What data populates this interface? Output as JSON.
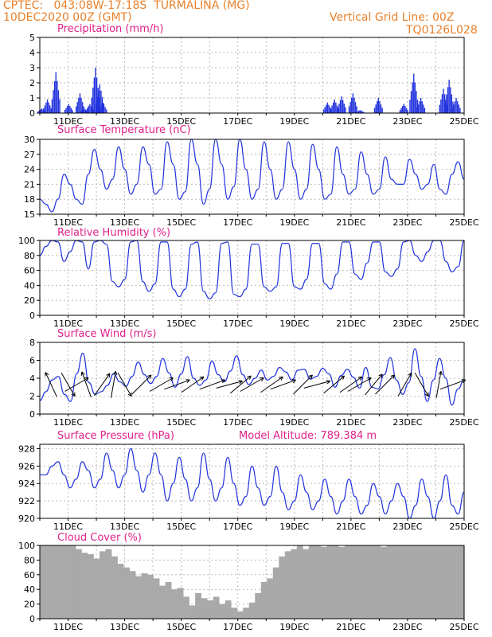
{
  "header": {
    "line1": "CPTEC:   043:08W-17:18S  TURMALINA (MG)",
    "line2": "10DEC2020 00Z (GMT)",
    "right1": "Vertical Grid Line: 00Z",
    "right2": "TQ0126L028"
  },
  "colors": {
    "line": "#2233dd",
    "title": "#e0208a",
    "header": "#e8802a",
    "cloud": "#a9a9a9",
    "arrow": "#000000"
  },
  "x_ticks": [
    "11DEC",
    "13DEC",
    "15DEC",
    "17DEC",
    "19DEC",
    "21DEC",
    "23DEC",
    "25DEC"
  ],
  "chart_data": [
    {
      "type": "bar",
      "title": "Precipitation (mm/h)",
      "ylim": [
        0,
        5
      ],
      "yticks": [
        "0",
        "1",
        "2",
        "3",
        "4",
        "5"
      ],
      "bursts": [
        [
          0.05,
          0.3
        ],
        [
          0.25,
          0.9
        ],
        [
          0.55,
          2.7
        ],
        [
          1.0,
          0.6
        ],
        [
          1.4,
          1.3
        ],
        [
          1.55,
          0.3
        ],
        [
          1.75,
          0.6
        ],
        [
          1.95,
          3.0
        ],
        [
          2.1,
          1.9
        ],
        [
          2.2,
          0.7
        ],
        [
          10.15,
          0.7
        ],
        [
          10.4,
          0.9
        ],
        [
          10.65,
          1.1
        ],
        [
          11.05,
          1.3
        ],
        [
          11.3,
          0.2
        ],
        [
          11.95,
          1.0
        ],
        [
          12.85,
          0.6
        ],
        [
          13.2,
          2.6
        ],
        [
          13.45,
          1.0
        ],
        [
          14.25,
          1.6
        ],
        [
          14.45,
          2.2
        ],
        [
          14.7,
          1.0
        ]
      ],
      "grid": true
    },
    {
      "type": "line",
      "title": "Surface Temperature (nC)",
      "ylim": [
        15,
        30
      ],
      "yticks": [
        "15",
        "18",
        "21",
        "24",
        "27",
        "30"
      ],
      "values": [
        18,
        17,
        15.5,
        18,
        23,
        21,
        18,
        17,
        23,
        28,
        24,
        20,
        22,
        28.5,
        24,
        19,
        21,
        28.5,
        25,
        19,
        20,
        29.5,
        25,
        18,
        19.5,
        30,
        25,
        17,
        20,
        31,
        25,
        18,
        20.5,
        30,
        24,
        18,
        20,
        29.5,
        24,
        18,
        20,
        29.5,
        24,
        18,
        20,
        29,
        24,
        18,
        19,
        28.5,
        23,
        19,
        20,
        27.5,
        23,
        19,
        20,
        26.5,
        22,
        21,
        21,
        26,
        23,
        20,
        21,
        25,
        20,
        19,
        23,
        25.5,
        22
      ],
      "grid": true
    },
    {
      "type": "line",
      "title": "Relative Humidity (%)",
      "ylim": [
        0,
        100
      ],
      "yticks": [
        "0",
        "20",
        "40",
        "60",
        "80",
        "100"
      ],
      "values": [
        80,
        92,
        100,
        98,
        72,
        85,
        100,
        98,
        62,
        98,
        100,
        95,
        45,
        38,
        48,
        98,
        100,
        45,
        32,
        42,
        98,
        98,
        35,
        25,
        35,
        95,
        98,
        32,
        22,
        30,
        96,
        98,
        28,
        25,
        35,
        95,
        95,
        38,
        32,
        38,
        96,
        96,
        38,
        35,
        48,
        96,
        96,
        42,
        35,
        55,
        98,
        98,
        55,
        48,
        70,
        98,
        98,
        58,
        52,
        62,
        98,
        100,
        80,
        72,
        85,
        100,
        100,
        72,
        58,
        65,
        100
      ],
      "grid": true
    },
    {
      "type": "line",
      "title": "Surface Wind (m/s)",
      "ylim": [
        0,
        8
      ],
      "yticks": [
        "0",
        "2",
        "4",
        "6",
        "8"
      ],
      "values": [
        1.5,
        2.5,
        3.8,
        4.2,
        2.2,
        1.4,
        4.5,
        6.8,
        3.5,
        2.2,
        2.5,
        3.2,
        4.5,
        3.6,
        3.1,
        4.2,
        5.8,
        4.4,
        3.4,
        4.2,
        6.2,
        4.6,
        3.0,
        4.5,
        6.4,
        4.0,
        3.2,
        3.8,
        5.9,
        4.4,
        3.6,
        4.8,
        6.5,
        4.4,
        3.3,
        4.0,
        4.9,
        3.8,
        4.2,
        5.2,
        4.7,
        3.8,
        4.9,
        5.0,
        3.9,
        4.2,
        5.1,
        4.5,
        3.0,
        4.3,
        5.0,
        4.1,
        2.9,
        5.2,
        3.0,
        2.8,
        4.4,
        6.3,
        3.8,
        2.2,
        3.5,
        7.3,
        4.2,
        1.4,
        3.8,
        6.2,
        4.0,
        1.0,
        2.8,
        3.8
      ],
      "arrows": [
        [
          0.4,
          -25
        ],
        [
          1.0,
          150
        ],
        [
          1.3,
          60
        ],
        [
          1.65,
          -20
        ],
        [
          2.2,
          35
        ],
        [
          2.6,
          10
        ],
        [
          3.0,
          150
        ],
        [
          3.6,
          45
        ],
        [
          4.3,
          60
        ],
        [
          4.85,
          70
        ],
        [
          5.4,
          55
        ],
        [
          6.1,
          70
        ],
        [
          6.7,
          75
        ],
        [
          7.1,
          50
        ],
        [
          7.5,
          60
        ],
        [
          8.2,
          55
        ],
        [
          8.6,
          70
        ],
        [
          9.3,
          45
        ],
        [
          9.8,
          75
        ],
        [
          10.4,
          50
        ],
        [
          11.0,
          55
        ],
        [
          11.3,
          60
        ],
        [
          11.8,
          40
        ],
        [
          12.2,
          45
        ],
        [
          12.9,
          30
        ],
        [
          13.5,
          150
        ],
        [
          14.1,
          10
        ],
        [
          14.6,
          70
        ]
      ],
      "grid": true
    },
    {
      "type": "line",
      "title": "Surface Pressure (hPa)",
      "subtitle": "Model Altitude: 789.384 m",
      "ylim": [
        920,
        928.5
      ],
      "yticks": [
        "920",
        "922",
        "924",
        "926",
        "928"
      ],
      "values": [
        925,
        925,
        926,
        926.5,
        925,
        923.5,
        924.5,
        926.5,
        925.5,
        923.5,
        924.5,
        927.5,
        925.5,
        923.5,
        925,
        928,
        925.5,
        923,
        925,
        927.5,
        925,
        922,
        924,
        927,
        924.5,
        922,
        923.5,
        927.5,
        924.5,
        922,
        923.5,
        927,
        924,
        921.5,
        922.5,
        926,
        923.5,
        921.5,
        922.5,
        926,
        923,
        921,
        922,
        925,
        923,
        921,
        922,
        924.5,
        922.5,
        920.5,
        922,
        924.5,
        922.5,
        920.5,
        921.5,
        924,
        922.5,
        920.5,
        922,
        924,
        922.5,
        920,
        921.5,
        924.5,
        922.5,
        920,
        922,
        925,
        921.5,
        920.5,
        923
      ],
      "grid": true
    },
    {
      "type": "bar",
      "title": "Cloud Cover (%)",
      "ylim": [
        0,
        100
      ],
      "yticks": [
        "0",
        "20",
        "40",
        "60",
        "80",
        "100"
      ],
      "values": [
        100,
        100,
        100,
        100,
        100,
        100,
        95,
        90,
        88,
        82,
        92,
        95,
        85,
        75,
        70,
        65,
        58,
        62,
        60,
        55,
        45,
        50,
        40,
        42,
        30,
        18,
        35,
        28,
        25,
        30,
        20,
        25,
        15,
        10,
        15,
        22,
        35,
        50,
        55,
        70,
        85,
        92,
        95,
        100,
        95,
        100,
        100,
        98,
        100,
        100,
        98,
        100,
        100,
        100,
        100,
        100,
        100,
        98,
        100,
        100,
        100,
        100,
        100,
        100,
        100,
        100,
        100,
        100,
        100,
        100,
        100
      ],
      "grid": true
    }
  ]
}
